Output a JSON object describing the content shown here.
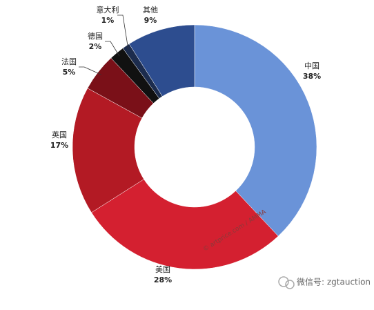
{
  "chart_data": {
    "type": "pie",
    "categories": [
      "中国",
      "美国",
      "英国",
      "法国",
      "德国",
      "意大利",
      "其他"
    ],
    "values": [
      38,
      28,
      17,
      5,
      2,
      1,
      9
    ],
    "value_labels": [
      "38%",
      "28%",
      "17%",
      "5%",
      "2%",
      "1%",
      "9%"
    ],
    "colors": [
      "#6a93d8",
      "#d42030",
      "#b31a24",
      "#7a1018",
      "#111111",
      "#1c2c4e",
      "#2d4d8f"
    ],
    "watermark": "© artprice.com / AMMA",
    "footer": "微信号: zgtauction"
  }
}
